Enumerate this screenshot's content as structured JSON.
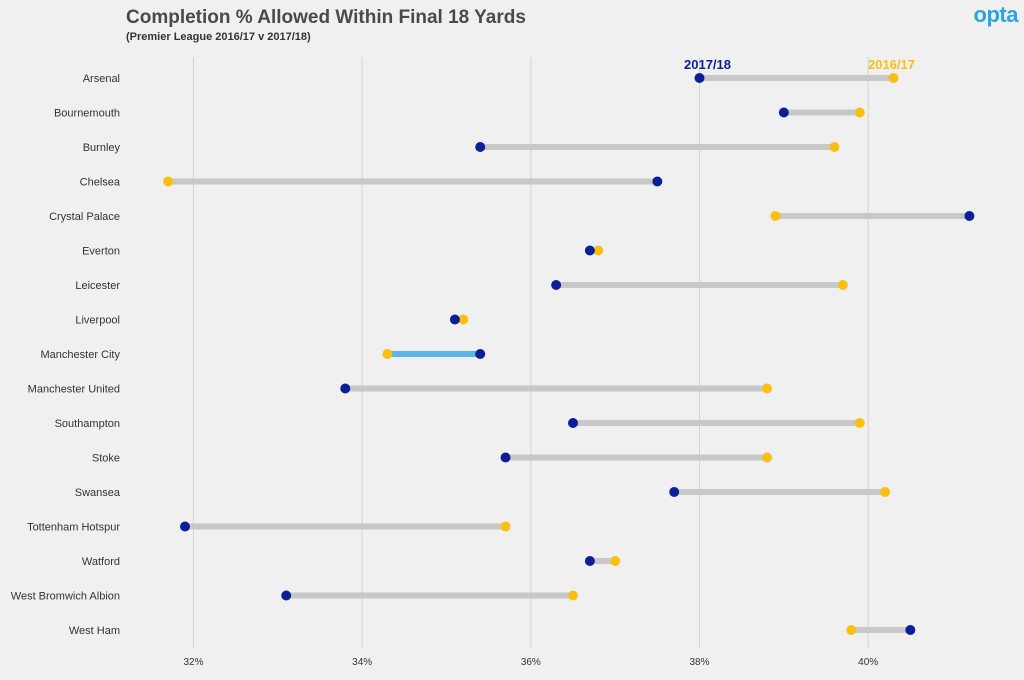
{
  "brand": {
    "logo_text": "opta",
    "color": "#2ea3e3"
  },
  "chart_data": {
    "type": "scatter",
    "title": "Completion % Allowed Within Final 18 Yards",
    "subtitle": "(Premier League 2016/17 v 2017/18)",
    "xlabel": "",
    "ylabel": "",
    "xlim": [
      31.2,
      41.8
    ],
    "x_ticks": [
      32,
      34,
      36,
      38,
      40
    ],
    "x_tick_labels": [
      "32%",
      "34%",
      "36%",
      "38%",
      "40%"
    ],
    "grid": "vertical",
    "legend": "top",
    "categories": [
      "Arsenal",
      "Bournemouth",
      "Burnley",
      "Chelsea",
      "Crystal Palace",
      "Everton",
      "Leicester",
      "Liverpool",
      "Manchester City",
      "Manchester United",
      "Southampton",
      "Stoke",
      "Swansea",
      "Tottenham Hotspur",
      "Watford",
      "West Bromwich Albion",
      "West Ham"
    ],
    "series": [
      {
        "name": "2017/18",
        "color": "#0c1f99",
        "values": [
          38.0,
          39.0,
          35.4,
          37.5,
          41.2,
          36.7,
          36.3,
          35.1,
          35.4,
          33.8,
          36.5,
          35.7,
          37.7,
          31.9,
          36.7,
          33.1,
          40.5
        ]
      },
      {
        "name": "2016/17",
        "color": "#fbbf14",
        "values": [
          40.3,
          39.9,
          39.6,
          31.7,
          38.9,
          36.8,
          39.7,
          35.2,
          34.3,
          38.8,
          39.9,
          38.8,
          40.2,
          35.7,
          37.0,
          36.5,
          39.8
        ]
      }
    ],
    "connector_color": "#c8c8c8",
    "highlight": {
      "category": "Manchester City",
      "color": "#5ab6e8"
    }
  }
}
